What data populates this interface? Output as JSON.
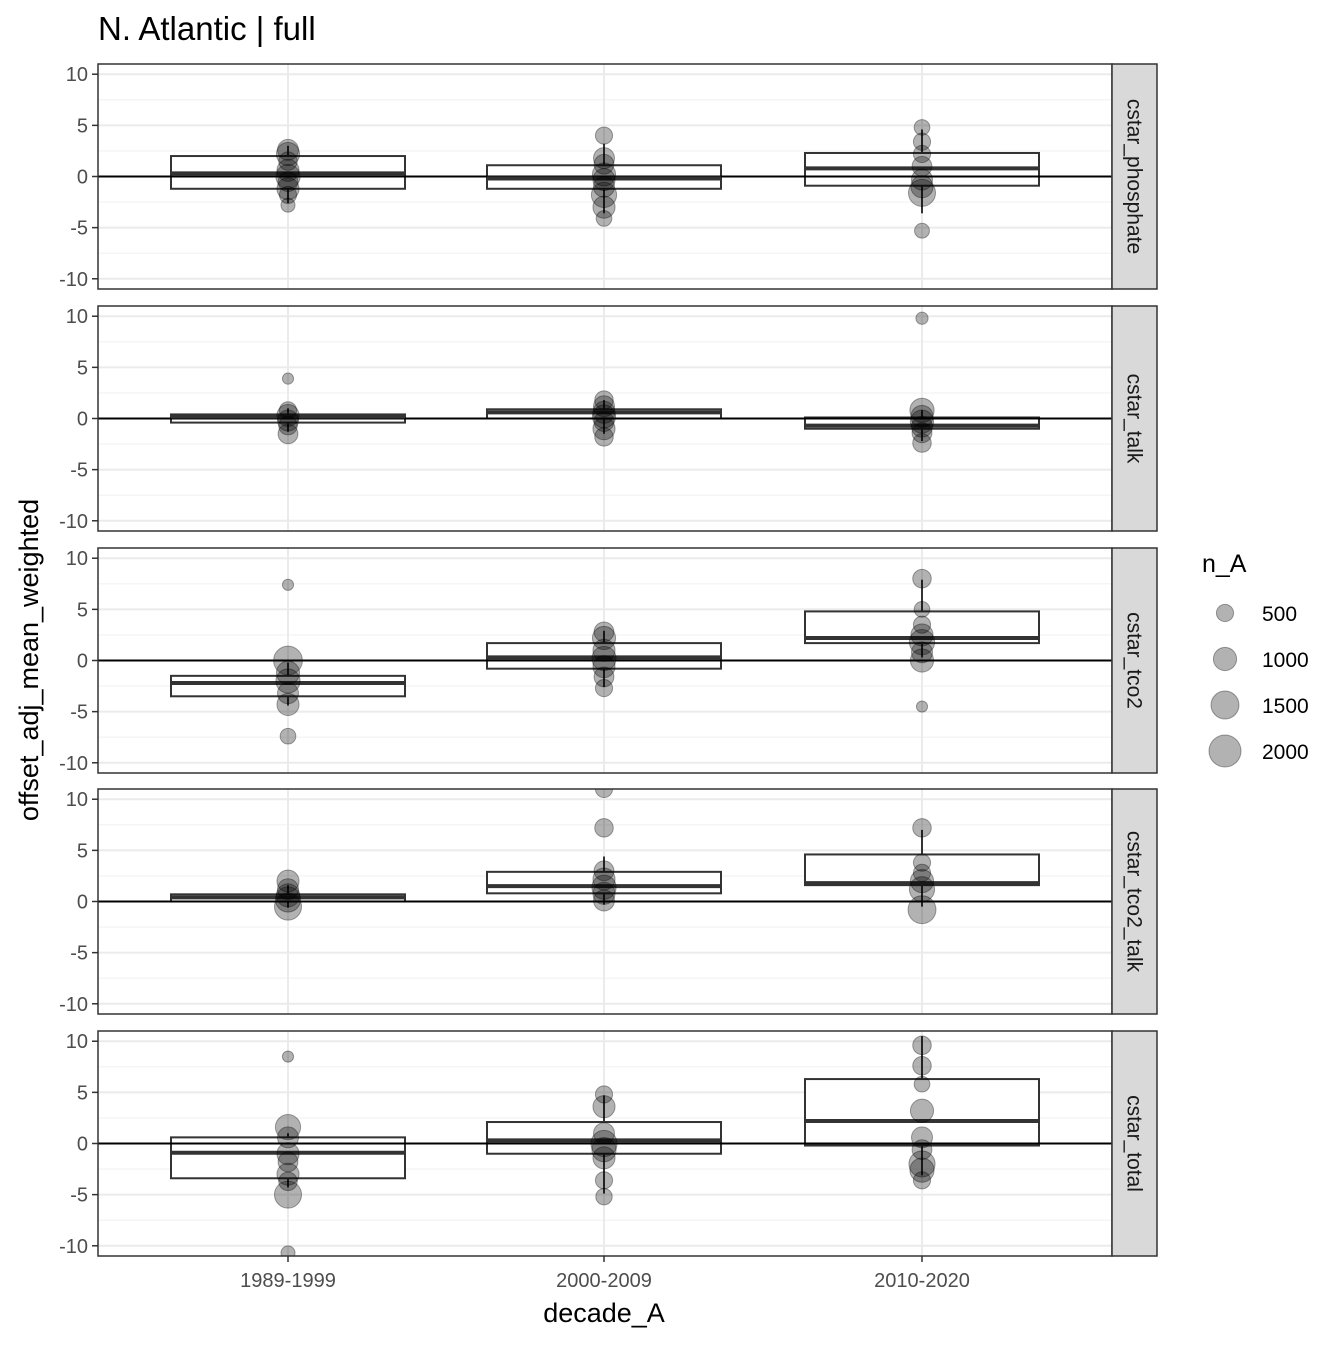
{
  "chart_data": {
    "type": "boxplot",
    "title": "N. Atlantic | full",
    "xlabel": "decade_A",
    "ylabel": "offset_adj_mean_weighted",
    "categories": [
      "1989-1999",
      "2000-2009",
      "2010-2020"
    ],
    "ylim": [
      -11,
      11
    ],
    "yticks": [
      10,
      5,
      0,
      -5,
      -10
    ],
    "ytick_labels": [
      "10",
      "5",
      "0",
      "-5",
      "-10"
    ],
    "hline": 0,
    "grid": true,
    "legend": {
      "title": "n_A",
      "position": "right",
      "entries": [
        {
          "label": "500",
          "value": 500
        },
        {
          "label": "1000",
          "value": 1000
        },
        {
          "label": "1500",
          "value": 1500
        },
        {
          "label": "2000",
          "value": 2000
        }
      ]
    },
    "size_scale": {
      "min_value": 100,
      "max_value": 2000
    },
    "point_color": "#000000",
    "point_alpha": 0.3,
    "strip_color": "#d9d9d9",
    "facets": [
      {
        "label": "cstar_phosphate",
        "boxes": [
          {
            "category": "1989-1999",
            "q1": -1.2,
            "median": 0.3,
            "q3": 2.0,
            "whisker_low": -2.6,
            "whisker_high": 3.0
          },
          {
            "category": "2000-2009",
            "q1": -1.2,
            "median": -0.2,
            "q3": 1.1,
            "whisker_low": -3.6,
            "whisker_high": 3.2
          },
          {
            "category": "2010-2020",
            "q1": -0.9,
            "median": 0.8,
            "q3": 2.3,
            "whisker_low": -3.6,
            "whisker_high": 4.6
          }
        ],
        "points": [
          {
            "category": "1989-1999",
            "y": 2.6,
            "n": 800
          },
          {
            "category": "1989-1999",
            "y": 2.2,
            "n": 1000
          },
          {
            "category": "1989-1999",
            "y": 1.5,
            "n": 600
          },
          {
            "category": "1989-1999",
            "y": 0.6,
            "n": 900
          },
          {
            "category": "1989-1999",
            "y": 0.0,
            "n": 1100
          },
          {
            "category": "1989-1999",
            "y": -0.5,
            "n": 700
          },
          {
            "category": "1989-1999",
            "y": -1.2,
            "n": 900
          },
          {
            "category": "1989-1999",
            "y": -1.8,
            "n": 500
          },
          {
            "category": "1989-1999",
            "y": -2.8,
            "n": 300
          },
          {
            "category": "2000-2009",
            "y": 4.0,
            "n": 500
          },
          {
            "category": "2000-2009",
            "y": 1.8,
            "n": 800
          },
          {
            "category": "2000-2009",
            "y": 1.2,
            "n": 700
          },
          {
            "category": "2000-2009",
            "y": 0.2,
            "n": 1000
          },
          {
            "category": "2000-2009",
            "y": -0.3,
            "n": 900
          },
          {
            "category": "2000-2009",
            "y": -1.0,
            "n": 800
          },
          {
            "category": "2000-2009",
            "y": -1.8,
            "n": 1200
          },
          {
            "category": "2000-2009",
            "y": -3.0,
            "n": 900
          },
          {
            "category": "2000-2009",
            "y": -4.1,
            "n": 400
          },
          {
            "category": "2010-2020",
            "y": 4.8,
            "n": 400
          },
          {
            "category": "2010-2020",
            "y": 3.4,
            "n": 500
          },
          {
            "category": "2010-2020",
            "y": 2.2,
            "n": 500
          },
          {
            "category": "2010-2020",
            "y": 1.0,
            "n": 700
          },
          {
            "category": "2010-2020",
            "y": -0.3,
            "n": 800
          },
          {
            "category": "2010-2020",
            "y": -1.0,
            "n": 900
          },
          {
            "category": "2010-2020",
            "y": -1.6,
            "n": 1400
          },
          {
            "category": "2010-2020",
            "y": -5.3,
            "n": 350
          }
        ]
      },
      {
        "label": "cstar_talk",
        "boxes": [
          {
            "category": "1989-1999",
            "q1": -0.4,
            "median": 0.2,
            "q3": 0.4,
            "whisker_low": -1.3,
            "whisker_high": 1.0
          },
          {
            "category": "2000-2009",
            "q1": 0.0,
            "median": 0.6,
            "q3": 0.9,
            "whisker_low": -1.5,
            "whisker_high": 1.8
          },
          {
            "category": "2010-2020",
            "q1": -1.0,
            "median": -0.7,
            "q3": 0.1,
            "whisker_low": -2.2,
            "whisker_high": 0.8
          }
        ],
        "points": [
          {
            "category": "1989-1999",
            "y": 3.9,
            "n": 150
          },
          {
            "category": "1989-1999",
            "y": 0.8,
            "n": 500
          },
          {
            "category": "1989-1999",
            "y": 0.3,
            "n": 900
          },
          {
            "category": "1989-1999",
            "y": -0.2,
            "n": 800
          },
          {
            "category": "1989-1999",
            "y": -0.7,
            "n": 600
          },
          {
            "category": "1989-1999",
            "y": -1.5,
            "n": 700
          },
          {
            "category": "2000-2009",
            "y": 1.8,
            "n": 600
          },
          {
            "category": "2000-2009",
            "y": 1.2,
            "n": 800
          },
          {
            "category": "2000-2009",
            "y": 0.6,
            "n": 900
          },
          {
            "category": "2000-2009",
            "y": 0.2,
            "n": 1000
          },
          {
            "category": "2000-2009",
            "y": -0.3,
            "n": 700
          },
          {
            "category": "2000-2009",
            "y": -1.0,
            "n": 900
          },
          {
            "category": "2000-2009",
            "y": -1.8,
            "n": 600
          },
          {
            "category": "2010-2020",
            "y": 9.8,
            "n": 200
          },
          {
            "category": "2010-2020",
            "y": 0.8,
            "n": 1100
          },
          {
            "category": "2010-2020",
            "y": 0.2,
            "n": 900
          },
          {
            "category": "2010-2020",
            "y": -0.3,
            "n": 1000
          },
          {
            "category": "2010-2020",
            "y": -0.8,
            "n": 800
          },
          {
            "category": "2010-2020",
            "y": -1.4,
            "n": 700
          },
          {
            "category": "2010-2020",
            "y": -2.4,
            "n": 600
          }
        ]
      },
      {
        "label": "cstar_tco2",
        "boxes": [
          {
            "category": "1989-1999",
            "q1": -3.5,
            "median": -2.2,
            "q3": -1.5,
            "whisker_low": -4.4,
            "whisker_high": -0.2
          },
          {
            "category": "2000-2009",
            "q1": -0.8,
            "median": 0.3,
            "q3": 1.7,
            "whisker_low": -2.6,
            "whisker_high": 2.9
          },
          {
            "category": "2010-2020",
            "q1": 1.7,
            "median": 2.2,
            "q3": 4.8,
            "whisker_low": 0.3,
            "whisker_high": 7.9
          }
        ],
        "points": [
          {
            "category": "1989-1999",
            "y": 7.4,
            "n": 150
          },
          {
            "category": "1989-1999",
            "y": 0.0,
            "n": 1600
          },
          {
            "category": "1989-1999",
            "y": -1.2,
            "n": 1000
          },
          {
            "category": "1989-1999",
            "y": -2.0,
            "n": 1100
          },
          {
            "category": "1989-1999",
            "y": -3.2,
            "n": 800
          },
          {
            "category": "1989-1999",
            "y": -4.3,
            "n": 900
          },
          {
            "category": "1989-1999",
            "y": -7.4,
            "n": 400
          },
          {
            "category": "2000-2009",
            "y": 2.8,
            "n": 700
          },
          {
            "category": "2000-2009",
            "y": 2.2,
            "n": 1000
          },
          {
            "category": "2000-2009",
            "y": 1.0,
            "n": 900
          },
          {
            "category": "2000-2009",
            "y": 0.2,
            "n": 1100
          },
          {
            "category": "2000-2009",
            "y": -0.6,
            "n": 900
          },
          {
            "category": "2000-2009",
            "y": -1.6,
            "n": 700
          },
          {
            "category": "2000-2009",
            "y": -2.7,
            "n": 500
          },
          {
            "category": "2010-2020",
            "y": 8.0,
            "n": 600
          },
          {
            "category": "2010-2020",
            "y": 5.0,
            "n": 400
          },
          {
            "category": "2010-2020",
            "y": 3.5,
            "n": 500
          },
          {
            "category": "2010-2020",
            "y": 2.5,
            "n": 900
          },
          {
            "category": "2010-2020",
            "y": 1.8,
            "n": 1200
          },
          {
            "category": "2010-2020",
            "y": 0.8,
            "n": 800
          },
          {
            "category": "2010-2020",
            "y": 0.0,
            "n": 1000
          },
          {
            "category": "2010-2020",
            "y": -4.5,
            "n": 150
          }
        ]
      },
      {
        "label": "cstar_tco2_talk",
        "boxes": [
          {
            "category": "1989-1999",
            "q1": 0.0,
            "median": 0.4,
            "q3": 0.7,
            "whisker_low": -0.6,
            "whisker_high": 1.6
          },
          {
            "category": "2000-2009",
            "q1": 0.8,
            "median": 1.5,
            "q3": 2.9,
            "whisker_low": -0.3,
            "whisker_high": 4.4
          },
          {
            "category": "2010-2020",
            "q1": 1.6,
            "median": 1.8,
            "q3": 4.6,
            "whisker_low": -0.5,
            "whisker_high": 7.0
          }
        ],
        "points": [
          {
            "category": "1989-1999",
            "y": 2.0,
            "n": 900
          },
          {
            "category": "1989-1999",
            "y": 1.2,
            "n": 800
          },
          {
            "category": "1989-1999",
            "y": 0.6,
            "n": 1000
          },
          {
            "category": "1989-1999",
            "y": 0.2,
            "n": 1200
          },
          {
            "category": "1989-1999",
            "y": -0.5,
            "n": 1400
          },
          {
            "category": "2000-2009",
            "y": 11.0,
            "n": 500
          },
          {
            "category": "2000-2009",
            "y": 7.2,
            "n": 600
          },
          {
            "category": "2000-2009",
            "y": 3.0,
            "n": 700
          },
          {
            "category": "2000-2009",
            "y": 2.2,
            "n": 900
          },
          {
            "category": "2000-2009",
            "y": 1.4,
            "n": 1100
          },
          {
            "category": "2000-2009",
            "y": 0.8,
            "n": 900
          },
          {
            "category": "2000-2009",
            "y": 0.1,
            "n": 800
          },
          {
            "category": "2010-2020",
            "y": 7.2,
            "n": 600
          },
          {
            "category": "2010-2020",
            "y": 3.8,
            "n": 500
          },
          {
            "category": "2010-2020",
            "y": 2.8,
            "n": 500
          },
          {
            "category": "2010-2020",
            "y": 2.0,
            "n": 1000
          },
          {
            "category": "2010-2020",
            "y": 1.2,
            "n": 1200
          },
          {
            "category": "2010-2020",
            "y": -0.8,
            "n": 1500
          }
        ]
      },
      {
        "label": "cstar_total",
        "boxes": [
          {
            "category": "1989-1999",
            "q1": -3.4,
            "median": -0.9,
            "q3": 0.6,
            "whisker_low": -4.3,
            "whisker_high": 1.0
          },
          {
            "category": "2000-2009",
            "q1": -1.0,
            "median": 0.3,
            "q3": 2.1,
            "whisker_low": -4.9,
            "whisker_high": 4.7
          },
          {
            "category": "2010-2020",
            "q1": -0.2,
            "median": 2.2,
            "q3": 6.3,
            "whisker_low": -3.1,
            "whisker_high": 10.5
          }
        ],
        "points": [
          {
            "category": "1989-1999",
            "y": 8.5,
            "n": 150
          },
          {
            "category": "1989-1999",
            "y": 1.6,
            "n": 1200
          },
          {
            "category": "1989-1999",
            "y": 0.6,
            "n": 800
          },
          {
            "category": "1989-1999",
            "y": -1.0,
            "n": 900
          },
          {
            "category": "1989-1999",
            "y": -1.8,
            "n": 700
          },
          {
            "category": "1989-1999",
            "y": -3.0,
            "n": 900
          },
          {
            "category": "1989-1999",
            "y": -3.7,
            "n": 600
          },
          {
            "category": "1989-1999",
            "y": -5.0,
            "n": 1400
          },
          {
            "category": "1989-1999",
            "y": -10.7,
            "n": 300
          },
          {
            "category": "2000-2009",
            "y": 4.8,
            "n": 500
          },
          {
            "category": "2000-2009",
            "y": 3.6,
            "n": 900
          },
          {
            "category": "2000-2009",
            "y": 1.0,
            "n": 800
          },
          {
            "category": "2000-2009",
            "y": 0.0,
            "n": 1300
          },
          {
            "category": "2000-2009",
            "y": -0.6,
            "n": 1100
          },
          {
            "category": "2000-2009",
            "y": -1.4,
            "n": 900
          },
          {
            "category": "2000-2009",
            "y": -3.6,
            "n": 500
          },
          {
            "category": "2000-2009",
            "y": -5.2,
            "n": 450
          },
          {
            "category": "2010-2020",
            "y": 9.6,
            "n": 600
          },
          {
            "category": "2010-2020",
            "y": 7.6,
            "n": 600
          },
          {
            "category": "2010-2020",
            "y": 5.8,
            "n": 400
          },
          {
            "category": "2010-2020",
            "y": 3.2,
            "n": 1000
          },
          {
            "category": "2010-2020",
            "y": 0.6,
            "n": 800
          },
          {
            "category": "2010-2020",
            "y": -0.6,
            "n": 700
          },
          {
            "category": "2010-2020",
            "y": -2.0,
            "n": 1300
          },
          {
            "category": "2010-2020",
            "y": -2.6,
            "n": 1100
          },
          {
            "category": "2010-2020",
            "y": -3.6,
            "n": 500
          }
        ]
      }
    ]
  }
}
